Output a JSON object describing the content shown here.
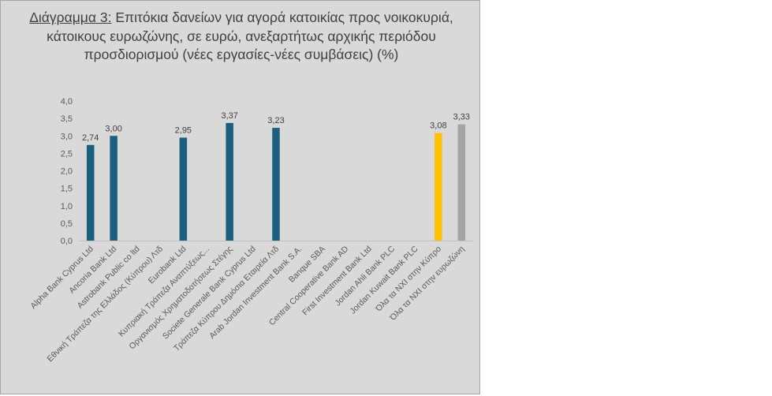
{
  "chart_data": {
    "type": "bar",
    "title_prefix": "Διάγραμμα 3:",
    "title": "Επιτόκια δανείων για αγορά κατοικίας προς νοικοκυριά, κάτοικους ευρωζώνης, σε ευρώ, ανεξαρτήτως αρχικής περιόδου προσδιορισμού (νέες εργασίες-νέες συμβάσεις) (%)",
    "categories": [
      "Alpha Bank Cyprus Ltd",
      "Ancoria Bank Ltd",
      "Astrobank Public co ltd",
      "Εθνική Τράπεζα της Ελλάδος (Κύπρου) Λτδ",
      "Eurobank Ltd",
      "Κυπριακή Τράπεζα Αναπτύξεως...",
      "Οργανισμός Χρηματοδοτήσεως Στέγης",
      "Societe Generale Bank Cyprus Ltd",
      "Τράπεζα Κύπρου Δημόσια Εταιρεία Λτδ",
      "Arab Jordan Investment Bank S.A.",
      "Banque SBA",
      "Central Cooperative Bank AD",
      "First Investment Bank Ltd",
      "Jordan Ahli Bank PLC",
      "Jordan Kuwait Bank PLC",
      "Όλα τα ΝΧΙ στην Κύπρο",
      "Όλα τα ΝΧΙ στην ευρωζώνη"
    ],
    "values": [
      2.74,
      3.0,
      null,
      null,
      2.95,
      null,
      3.37,
      null,
      3.23,
      null,
      null,
      null,
      null,
      null,
      null,
      3.08,
      3.33
    ],
    "value_labels": [
      "2,74",
      "3,00",
      "",
      "",
      "2,95",
      "",
      "3,37",
      "",
      "3,23",
      "",
      "",
      "",
      "",
      "",
      "",
      "3,08",
      "3,33"
    ],
    "bar_colors": [
      "#1a5f7e",
      "#1a5f7e",
      "#1a5f7e",
      "#1a5f7e",
      "#1a5f7e",
      "#1a5f7e",
      "#1a5f7e",
      "#1a5f7e",
      "#1a5f7e",
      "#1a5f7e",
      "#1a5f7e",
      "#1a5f7e",
      "#1a5f7e",
      "#1a5f7e",
      "#1a5f7e",
      "#ffc000",
      "#a5a5a5"
    ],
    "ylim": [
      0,
      4.0
    ],
    "yticks": [
      "0,0",
      "0,5",
      "1,0",
      "1,5",
      "2,0",
      "2,5",
      "3,0",
      "3,5",
      "4,0"
    ],
    "grid": false,
    "legend": "none",
    "xlabel": "",
    "ylabel": ""
  }
}
